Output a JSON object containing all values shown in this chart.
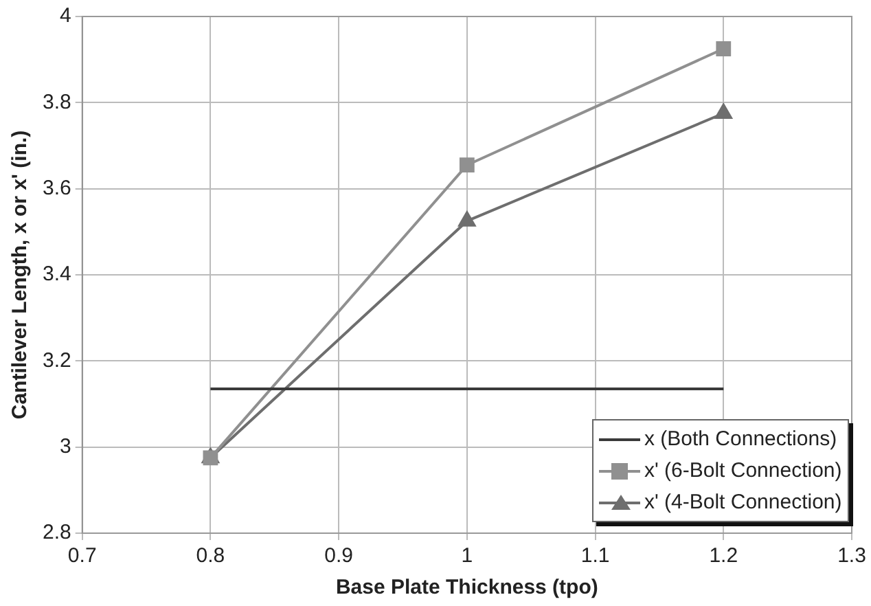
{
  "chart_data": {
    "type": "line",
    "xlabel": "Base Plate Thickness (tpo)",
    "ylabel": "Cantilever Length, x or x' (in.)",
    "x": [
      0.8,
      1,
      1.2
    ],
    "series": [
      {
        "name": "x (Both Connections)",
        "color": "#3a3a3a",
        "values": [
          3.135,
          3.135,
          3.135
        ],
        "marker": "none"
      },
      {
        "name": "x' (6-Bolt Connection)",
        "color": "#909090",
        "values": [
          2.975,
          3.655,
          3.925
        ],
        "marker": "square"
      },
      {
        "name": "x' (4-Bolt Connection)",
        "color": "#6e6e6e",
        "values": [
          2.975,
          3.525,
          3.775
        ],
        "marker": "triangle"
      }
    ],
    "xlim": [
      0.7,
      1.3
    ],
    "xticks": [
      0.7,
      0.8,
      0.9,
      1,
      1.1,
      1.2,
      1.3
    ],
    "ylim": [
      2.8,
      4
    ],
    "yticks": [
      2.8,
      3,
      3.2,
      3.4,
      3.6,
      3.8,
      4
    ],
    "grid": true,
    "legend": "bottom right",
    "line_style": "solid"
  }
}
